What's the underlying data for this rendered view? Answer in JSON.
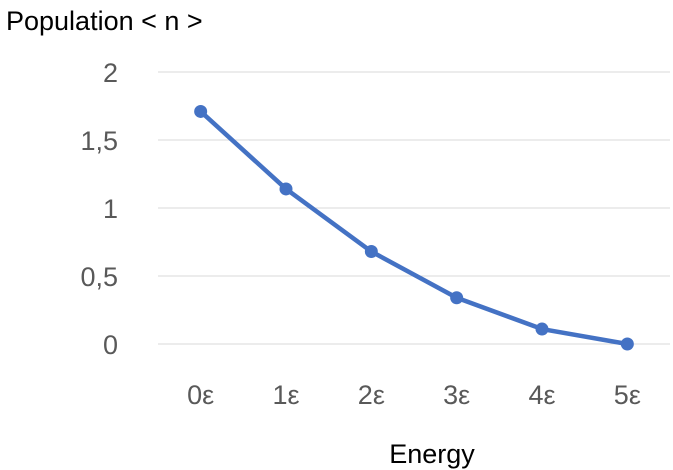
{
  "chart_data": {
    "type": "line",
    "title": "",
    "ylabel": "Population < n >",
    "xlabel": "Energy",
    "categories": [
      "0ε",
      "1ε",
      "2ε",
      "3ε",
      "4ε",
      "5ε"
    ],
    "series": [
      {
        "values": [
          1.71,
          1.14,
          0.68,
          0.34,
          0.11,
          0.0
        ]
      }
    ],
    "ylim": [
      0,
      2
    ],
    "yticks": [
      0,
      0.5,
      1,
      1.5,
      2
    ],
    "ytick_labels": [
      "0",
      "0,5",
      "1",
      "1,5",
      "2"
    ],
    "grid": "horizontal",
    "legend": "none",
    "colors": {
      "series": "#4472C4",
      "grid": "#D9D9D9"
    }
  }
}
